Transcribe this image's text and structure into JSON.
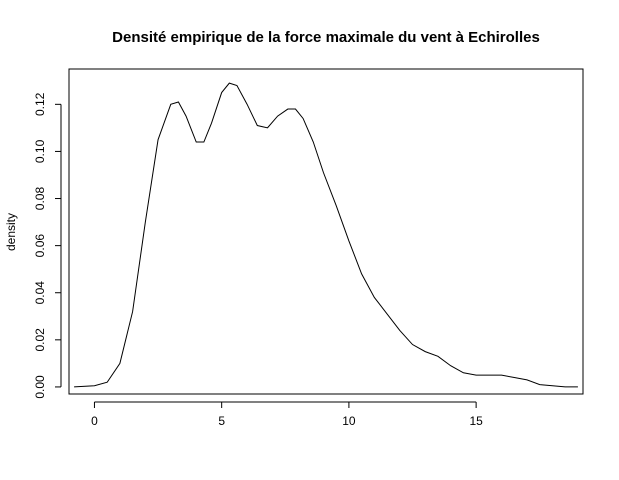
{
  "chart_data": {
    "type": "line",
    "title": "Densité empirique de la force maximale du vent à Echirolles",
    "xlabel": "",
    "ylabel": "density",
    "xlim": [
      -1,
      19.2
    ],
    "ylim": [
      -0.003,
      0.135
    ],
    "x_ticks": [
      0,
      5,
      10,
      15
    ],
    "x_tick_labels": [
      "0",
      "5",
      "10",
      "15"
    ],
    "y_ticks": [
      0,
      0.02,
      0.04,
      0.06,
      0.08,
      0.1,
      0.12
    ],
    "y_tick_labels": [
      "0.00",
      "0.02",
      "0.04",
      "0.06",
      "0.08",
      "0.10",
      "0.12"
    ],
    "grid": false,
    "legend": "none",
    "line_color": "#000000",
    "series": [
      {
        "x": [
          -0.8,
          0.0,
          0.5,
          1.0,
          1.5,
          2.0,
          2.5,
          3.0,
          3.3,
          3.6,
          4.0,
          4.3,
          4.6,
          5.0,
          5.3,
          5.6,
          6.0,
          6.4,
          6.8,
          7.2,
          7.6,
          7.9,
          8.2,
          8.6,
          9.0,
          9.5,
          10.0,
          10.5,
          11.0,
          11.5,
          12.0,
          12.5,
          13.0,
          13.5,
          14.0,
          14.5,
          15.0,
          15.5,
          16.0,
          16.5,
          17.0,
          17.5,
          18.0,
          18.5,
          19.0
        ],
        "y": [
          0.0,
          0.0005,
          0.002,
          0.01,
          0.032,
          0.07,
          0.105,
          0.12,
          0.121,
          0.115,
          0.104,
          0.104,
          0.112,
          0.125,
          0.129,
          0.128,
          0.12,
          0.111,
          0.11,
          0.115,
          0.118,
          0.118,
          0.114,
          0.104,
          0.091,
          0.077,
          0.062,
          0.048,
          0.038,
          0.031,
          0.024,
          0.018,
          0.015,
          0.013,
          0.009,
          0.006,
          0.005,
          0.005,
          0.005,
          0.004,
          0.003,
          0.001,
          0.0005,
          0.0,
          0.0
        ]
      }
    ]
  }
}
